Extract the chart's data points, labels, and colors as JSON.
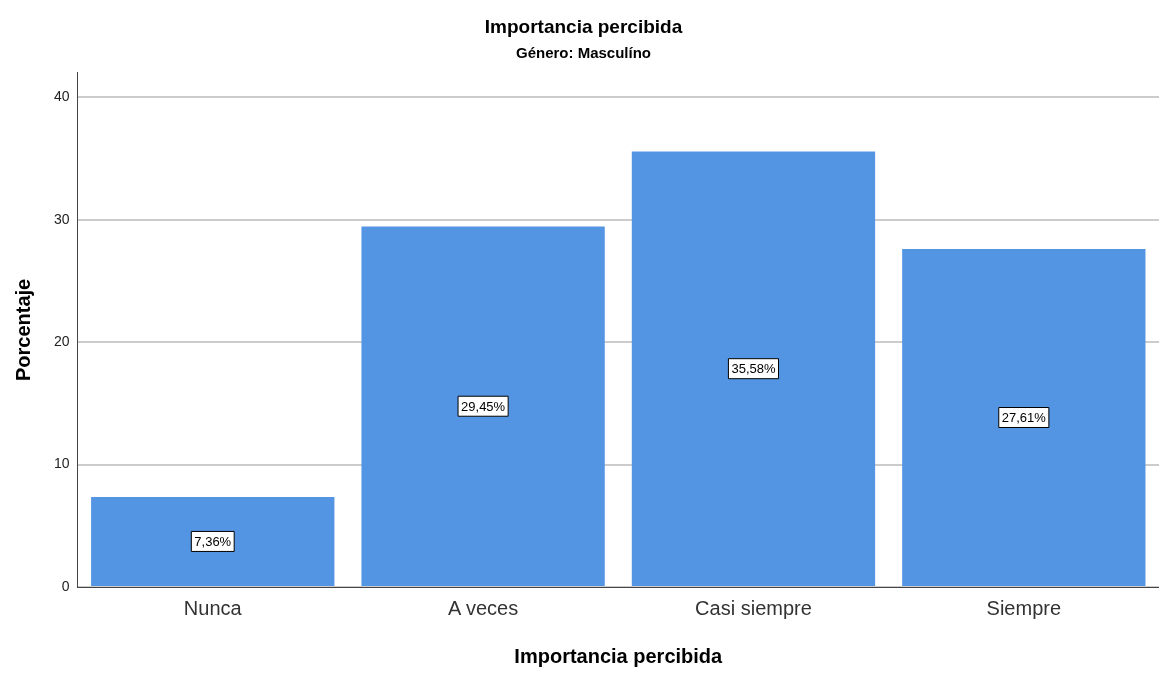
{
  "chart_data": {
    "type": "bar",
    "title": "Importancia percibida",
    "subtitle": "Género: Masculíno",
    "xlabel": "Importancia percibida",
    "ylabel": "Porcentaje",
    "categories": [
      "Nunca",
      "A veces",
      "Casi siempre",
      "Siempre"
    ],
    "values": [
      7.36,
      29.45,
      35.58,
      27.61
    ],
    "value_labels": [
      "7,36%",
      "29,45%",
      "35,58%",
      "27,61%"
    ],
    "color": "#5495e3",
    "ylim": [
      0,
      42
    ],
    "yticks": [
      0,
      10,
      20,
      30,
      40
    ],
    "grid": "y",
    "legend": false
  }
}
